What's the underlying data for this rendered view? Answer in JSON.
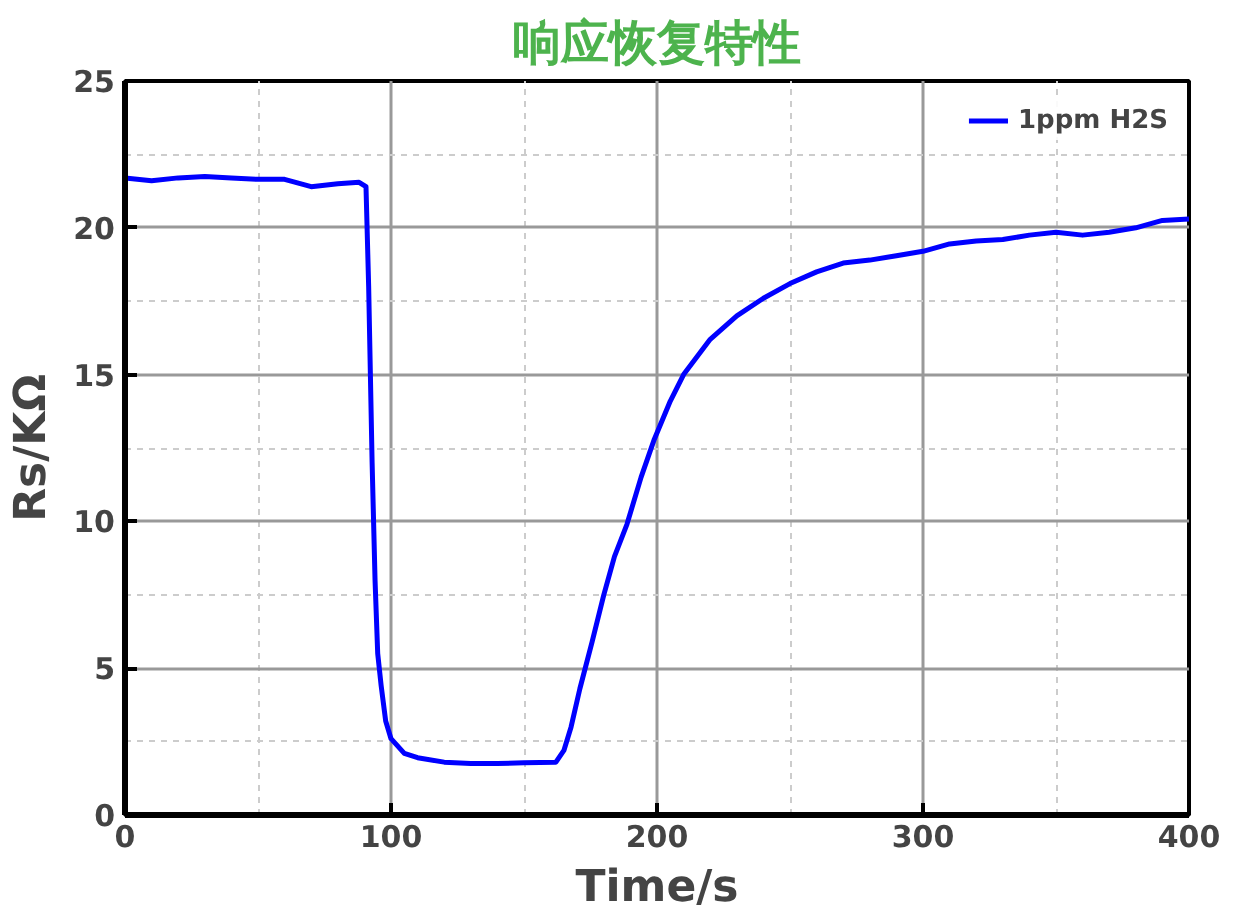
{
  "chart_data": {
    "type": "line",
    "title": "响应恢复特性",
    "xlabel": "Time/s",
    "ylabel": "Rs/KΩ",
    "xlim": [
      0,
      400
    ],
    "xticks": [
      0,
      100,
      200,
      300,
      400
    ],
    "ylim": [
      0,
      25
    ],
    "yticks": [
      0,
      5,
      10,
      15,
      20,
      25
    ],
    "grid": true,
    "legend": "top right",
    "line_style": "solid",
    "series": [
      {
        "name": "1ppm H2S",
        "color": "#0000ff",
        "x": [
          0,
          10,
          20,
          30,
          40,
          50,
          60,
          70,
          80,
          88,
          90.6,
          91.6,
          92.9,
          94,
          95,
          96.3,
          98,
          100,
          105,
          110,
          120,
          130,
          140,
          150,
          162,
          165,
          167.7,
          171,
          175.6,
          180,
          184,
          188.7,
          194,
          199,
          205,
          210,
          220,
          230,
          240,
          250,
          260,
          270,
          280,
          290,
          300,
          310,
          320,
          330,
          340,
          350,
          360,
          370,
          380,
          390,
          400
        ],
        "values": [
          21.7,
          21.6,
          21.7,
          21.75,
          21.7,
          21.65,
          21.65,
          21.4,
          21.5,
          21.55,
          21.4,
          18,
          12,
          8,
          5.5,
          4.4,
          3.2,
          2.6,
          2.1,
          1.95,
          1.8,
          1.75,
          1.75,
          1.78,
          1.8,
          2.2,
          3.0,
          4.3,
          5.9,
          7.5,
          8.8,
          9.9,
          11.5,
          12.8,
          14.1,
          15,
          16.2,
          17,
          17.6,
          18.1,
          18.5,
          18.8,
          18.9,
          19.05,
          19.2,
          19.45,
          19.55,
          19.6,
          19.75,
          19.85,
          19.75,
          19.85,
          20.0,
          20.25,
          20.3
        ]
      }
    ]
  }
}
